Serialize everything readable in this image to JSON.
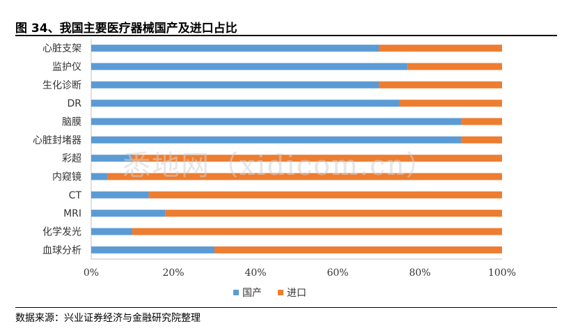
{
  "figure": {
    "title": "图 34、我国主要医疗器械国产及进口占比",
    "source": "数据来源：兴业证券经济与金融研究院整理",
    "watermark": "悉地网（xidicom.cn）"
  },
  "colors": {
    "domestic": "#5B9BD5",
    "import": "#ED7D31",
    "axis": "#bfbfbf"
  },
  "chart_data": {
    "type": "bar",
    "orientation": "horizontal",
    "stacked": true,
    "categories": [
      "心脏支架",
      "监护仪",
      "生化诊断",
      "DR",
      "脑膜",
      "心脏封堵器",
      "彩超",
      "内窥镜",
      "CT",
      "MRI",
      "化学发光",
      "血球分析"
    ],
    "series": [
      {
        "name": "国产",
        "values": [
          70,
          77,
          70,
          75,
          90,
          90,
          10,
          4,
          14,
          18,
          10,
          30
        ]
      },
      {
        "name": "进口",
        "values": [
          30,
          23,
          30,
          25,
          10,
          10,
          90,
          96,
          86,
          82,
          90,
          70
        ]
      }
    ],
    "xlim": [
      0,
      100
    ],
    "xticks": [
      "0%",
      "20%",
      "40%",
      "60%",
      "80%",
      "100%"
    ],
    "legend_position": "bottom",
    "grid": false
  }
}
